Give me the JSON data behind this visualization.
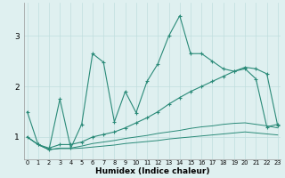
{
  "xlabel": "Humidex (Indice chaleur)",
  "x_values": [
    0,
    1,
    2,
    3,
    4,
    5,
    6,
    7,
    8,
    9,
    10,
    11,
    12,
    13,
    14,
    15,
    16,
    17,
    18,
    19,
    20,
    21,
    22,
    23
  ],
  "main_line": [
    1.5,
    0.85,
    0.75,
    1.75,
    0.78,
    1.25,
    2.65,
    2.48,
    1.3,
    1.9,
    1.48,
    2.1,
    2.45,
    3.0,
    3.4,
    2.65,
    2.65,
    2.5,
    2.35,
    2.3,
    2.35,
    2.15,
    1.2,
    1.25
  ],
  "line2": [
    1.0,
    0.85,
    0.78,
    0.85,
    0.85,
    0.9,
    1.0,
    1.05,
    1.1,
    1.18,
    1.28,
    1.38,
    1.5,
    1.65,
    1.78,
    1.9,
    2.0,
    2.1,
    2.2,
    2.3,
    2.38,
    2.35,
    2.25,
    1.22
  ],
  "line3": [
    1.0,
    0.85,
    0.75,
    0.78,
    0.78,
    0.82,
    0.87,
    0.9,
    0.93,
    0.97,
    1.0,
    1.03,
    1.07,
    1.1,
    1.13,
    1.17,
    1.2,
    1.22,
    1.25,
    1.27,
    1.28,
    1.25,
    1.22,
    1.18
  ],
  "line4": [
    1.0,
    0.85,
    0.75,
    0.77,
    0.77,
    0.78,
    0.8,
    0.82,
    0.84,
    0.87,
    0.89,
    0.91,
    0.93,
    0.96,
    0.98,
    1.0,
    1.02,
    1.04,
    1.06,
    1.08,
    1.1,
    1.08,
    1.06,
    1.04
  ],
  "line_color": "#2a8a78",
  "bg_color": "#dff0f0",
  "grid_color": "#c0dede",
  "ylim": [
    0.55,
    3.65
  ],
  "yticks": [
    1,
    2,
    3
  ],
  "xlim": [
    -0.3,
    23.3
  ]
}
